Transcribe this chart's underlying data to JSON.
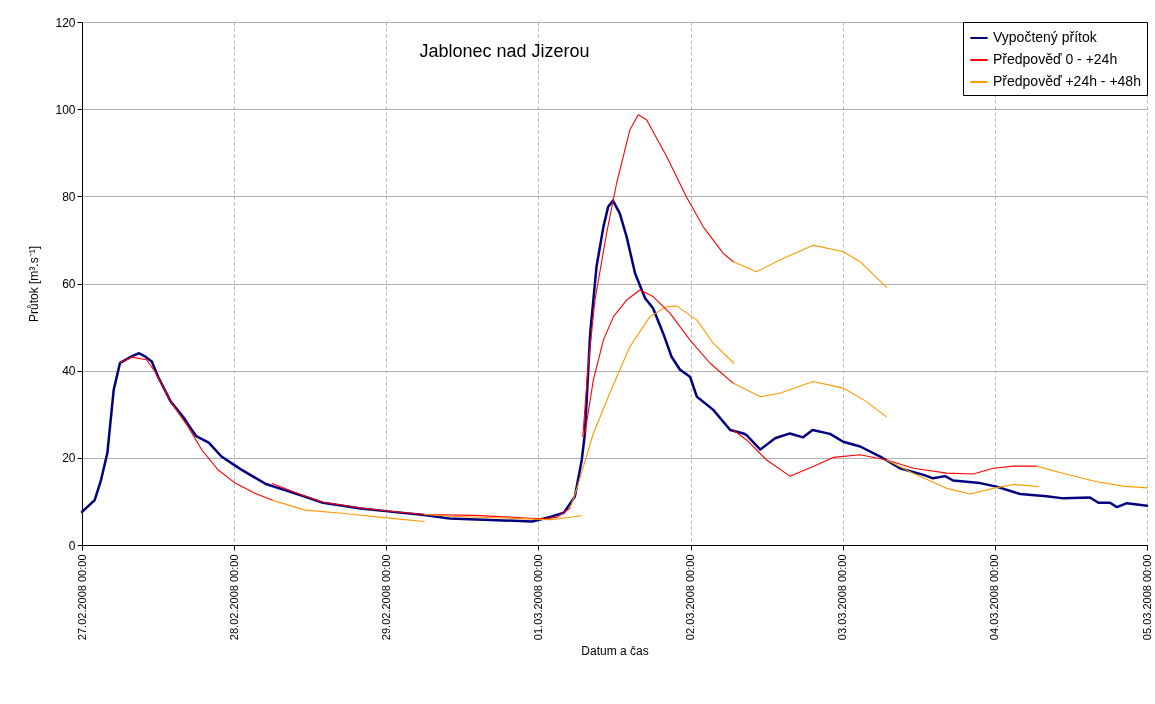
{
  "chart_data": {
    "type": "line",
    "title": "Jablonec nad Jizerou",
    "xlabel": "Datum a čas",
    "ylabel": "Průtok [m³.s⁻¹]",
    "xlim": [
      "2008-02-27T00:00",
      "2008-03-05T00:00"
    ],
    "xticks": [
      {
        "value": "2008-02-27T00:00",
        "label": "27.02.2008 00:00"
      },
      {
        "value": "2008-02-28T00:00",
        "label": "28.02.2008 00:00"
      },
      {
        "value": "2008-02-29T00:00",
        "label": "29.02.2008 00:00"
      },
      {
        "value": "2008-03-01T00:00",
        "label": "01.03.2008 00:00"
      },
      {
        "value": "2008-03-02T00:00",
        "label": "02.03.2008 00:00"
      },
      {
        "value": "2008-03-03T00:00",
        "label": "03.03.2008 00:00"
      },
      {
        "value": "2008-03-04T00:00",
        "label": "04.03.2008 00:00"
      },
      {
        "value": "2008-03-05T00:00",
        "label": "05.03.2008 00:00"
      }
    ],
    "ylim": [
      0,
      120
    ],
    "yticks": [
      0,
      20,
      40,
      60,
      80,
      100,
      120
    ],
    "grid": true,
    "legend": "top right",
    "marker": "none",
    "line_style": "solid",
    "series": [
      {
        "name": "Vypočtený přítok",
        "color": "#000080",
        "x": [
          "2008-02-27T00:00",
          "2008-02-27T02:00",
          "2008-02-27T03:00",
          "2008-02-27T04:00",
          "2008-02-27T05:00",
          "2008-02-27T06:00",
          "2008-02-27T08:00",
          "2008-02-27T09:00",
          "2008-02-27T10:00",
          "2008-02-27T11:00",
          "2008-02-27T12:00",
          "2008-02-27T14:00",
          "2008-02-27T16:00",
          "2008-02-27T17:00",
          "2008-02-27T18:00",
          "2008-02-27T20:00",
          "2008-02-27T22:00",
          "2008-02-28T01:00",
          "2008-02-28T03:00",
          "2008-02-28T05:00",
          "2008-02-28T08:00",
          "2008-02-28T11:00",
          "2008-02-28T14:00",
          "2008-02-28T20:00",
          "2008-02-29T01:00",
          "2008-02-29T06:00",
          "2008-02-29T10:00",
          "2008-02-29T23:00",
          "2008-03-01T02:00",
          "2008-03-01T04:00",
          "2008-03-01T05:45",
          "2008-03-01T06:50",
          "2008-03-01T07:20",
          "2008-03-01T08:10",
          "2008-03-01T09:10",
          "2008-03-01T10:15",
          "2008-03-01T11:00",
          "2008-03-01T11:45",
          "2008-03-01T12:50",
          "2008-03-01T13:55",
          "2008-03-01T15:15",
          "2008-03-01T16:50",
          "2008-03-01T18:05",
          "2008-03-01T19:40",
          "2008-03-01T21:00",
          "2008-03-01T22:20",
          "2008-03-01T23:55",
          "2008-03-02T01:00",
          "2008-03-02T03:35",
          "2008-03-02T06:15",
          "2008-03-02T08:20",
          "2008-03-02T08:50",
          "2008-03-02T11:00",
          "2008-03-02T13:20",
          "2008-03-02T15:40",
          "2008-03-02T17:45",
          "2008-03-02T19:15",
          "2008-03-02T22:00",
          "2008-03-03T00:05",
          "2008-03-03T02:45",
          "2008-03-03T05:55",
          "2008-03-03T09:00",
          "2008-03-03T12:45",
          "2008-03-03T14:15",
          "2008-03-03T16:10",
          "2008-03-03T17:25",
          "2008-03-03T21:40",
          "2008-03-04T00:15",
          "2008-03-04T04:00",
          "2008-03-04T08:10",
          "2008-03-04T10:50",
          "2008-03-04T15:00",
          "2008-03-04T16:20",
          "2008-03-04T18:10",
          "2008-03-04T19:15",
          "2008-03-04T20:50",
          "2008-03-05T00:00"
        ],
        "values": [
          7.6,
          10.3,
          14.9,
          21.1,
          35.6,
          41.8,
          43.4,
          44.0,
          43.2,
          42.1,
          38.6,
          32.9,
          29.3,
          27.1,
          25.0,
          23.5,
          20.3,
          17.4,
          15.7,
          14.0,
          12.6,
          11.2,
          9.7,
          8.4,
          7.6,
          6.9,
          6.1,
          5.4,
          6.5,
          7.4,
          11.1,
          19.5,
          25.6,
          48.6,
          63.9,
          73.0,
          77.6,
          79.0,
          76.1,
          70.7,
          62.3,
          56.6,
          54.3,
          48.6,
          43.2,
          40.2,
          38.6,
          34.0,
          31.0,
          26.4,
          25.6,
          25.2,
          21.9,
          24.5,
          25.6,
          24.7,
          26.4,
          25.5,
          23.7,
          22.6,
          20.3,
          17.6,
          16.1,
          15.3,
          15.8,
          14.8,
          14.2,
          13.4,
          11.7,
          11.2,
          10.7,
          10.9,
          9.7,
          9.7,
          8.7,
          9.6,
          9.0
        ]
      },
      {
        "name": "Předpověď 0 - +24h",
        "color": "#ff0000",
        "x": [
          "2008-02-27T06:00",
          "2008-02-27T07:50",
          "2008-02-27T10:10",
          "2008-02-27T11:30",
          "2008-02-27T14:10",
          "2008-02-27T16:45",
          "2008-02-27T18:55",
          "2008-02-27T21:30",
          "2008-02-28T00:10",
          "2008-02-28T03:15",
          "2008-02-28T06:00"
        ],
        "values": [
          41.8,
          43.1,
          42.5,
          39.8,
          32.5,
          27.1,
          21.8,
          17.2,
          14.2,
          11.9,
          10.3
        ]
      },
      {
        "name": "Předpověď +24h - +48h",
        "color": "#ff9900",
        "x": [
          "2008-02-28T06:00",
          "2008-02-28T11:10",
          "2008-02-28T17:00",
          "2008-02-29T00:50",
          "2008-02-29T06:00"
        ],
        "values": [
          10.3,
          8.0,
          7.3,
          6.1,
          5.4
        ]
      },
      {
        "color": "#ff0000",
        "x": [
          "2008-02-28T06:00",
          "2008-02-28T11:00",
          "2008-02-28T14:00",
          "2008-02-28T20:00",
          "2008-02-29T01:00",
          "2008-02-29T06:00",
          "2008-02-29T14:00",
          "2008-02-29T22:00",
          "2008-03-01T01:00",
          "2008-03-01T03:00",
          "2008-03-01T05:00"
        ],
        "values": [
          14.1,
          11.3,
          9.8,
          8.5,
          7.7,
          7.0,
          6.8,
          6.2,
          6.0,
          6.4,
          8.5
        ]
      },
      {
        "color": "#ff9900",
        "x": [
          "2008-02-29T06:00",
          "2008-02-29T10:00",
          "2008-02-29T22:00",
          "2008-03-01T02:00",
          "2008-03-01T06:50"
        ],
        "values": [
          7.0,
          6.6,
          6.0,
          5.8,
          6.7
        ]
      },
      {
        "color": "#ff9900",
        "x": [
          "2008-03-01T05:00",
          "2008-03-01T05:45",
          "2008-03-01T08:40",
          "2008-03-01T11:15",
          "2008-03-01T14:25",
          "2008-03-01T17:35",
          "2008-03-01T20:15",
          "2008-03-01T21:50",
          "2008-03-02T01:00",
          "2008-03-02T03:35",
          "2008-03-02T06:50"
        ],
        "values": [
          8.5,
          11.5,
          25.6,
          34.8,
          45.5,
          52.4,
          54.7,
          54.8,
          51.6,
          46.3,
          41.7
        ]
      },
      {
        "color": "#ff0000",
        "x": [
          "2008-03-01T07:00",
          "2008-03-01T07:50",
          "2008-03-01T08:55",
          "2008-03-01T10:45",
          "2008-03-01T12:20",
          "2008-03-01T14:25",
          "2008-03-01T15:45",
          "2008-03-01T17:05",
          "2008-03-01T20:15",
          "2008-03-01T23:20",
          "2008-03-02T02:00",
          "2008-03-02T05:10",
          "2008-03-02T06:45"
        ],
        "values": [
          24.9,
          40.9,
          56.2,
          71.5,
          83.0,
          95.2,
          98.7,
          97.5,
          89.1,
          79.9,
          73.0,
          66.9,
          65.0
        ]
      },
      {
        "color": "#ff9900",
        "x": [
          "2008-03-02T06:45",
          "2008-03-02T10:25",
          "2008-03-02T14:05",
          "2008-03-02T19:20",
          "2008-03-03T00:05",
          "2008-03-03T02:45",
          "2008-03-03T06:55"
        ],
        "values": [
          65.0,
          62.7,
          65.4,
          68.8,
          67.3,
          65.0,
          59.1
        ]
      },
      {
        "color": "#ff0000",
        "x": [
          "2008-03-01T07:20",
          "2008-03-01T08:40",
          "2008-03-01T10:15",
          "2008-03-01T11:50",
          "2008-03-01T13:55",
          "2008-03-01T16:00",
          "2008-03-01T18:05",
          "2008-03-01T20:45",
          "2008-03-01T23:55",
          "2008-03-02T03:05",
          "2008-03-02T06:45"
        ],
        "values": [
          25.6,
          37.9,
          47.0,
          52.4,
          56.2,
          58.5,
          57.0,
          53.2,
          47.0,
          41.7,
          37.1
        ]
      },
      {
        "color": "#ff9900",
        "x": [
          "2008-03-02T06:45",
          "2008-03-02T11:00",
          "2008-03-02T14:05",
          "2008-03-02T19:20",
          "2008-03-03T00:05",
          "2008-03-03T03:45",
          "2008-03-03T06:55"
        ],
        "values": [
          37.1,
          34.0,
          34.8,
          37.5,
          36.0,
          32.9,
          29.4
        ]
      },
      {
        "color": "#ff0000",
        "x": [
          "2008-03-02T06:45",
          "2008-03-02T08:50",
          "2008-03-02T12:00",
          "2008-03-02T15:40",
          "2008-03-02T19:20",
          "2008-03-02T22:30",
          "2008-03-03T02:45",
          "2008-03-03T06:55",
          "2008-03-03T11:10",
          "2008-03-03T16:25",
          "2008-03-03T20:35",
          "2008-03-03T23:45",
          "2008-03-04T02:55",
          "2008-03-04T06:35"
        ],
        "values": [
          26.4,
          24.1,
          19.5,
          15.8,
          18.0,
          20.1,
          20.7,
          19.5,
          17.6,
          16.5,
          16.3,
          17.6,
          18.1,
          18.1
        ]
      },
      {
        "color": "#ff9900",
        "x": [
          "2008-03-03T06:55",
          "2008-03-03T11:10",
          "2008-03-03T16:25",
          "2008-03-03T20:05",
          "2008-03-03T23:45",
          "2008-03-04T02:55",
          "2008-03-04T06:50"
        ],
        "values": [
          19.5,
          16.4,
          13.0,
          11.7,
          13.0,
          13.9,
          13.4
        ]
      },
      {
        "color": "#ff9900",
        "x": [
          "2008-03-04T06:35",
          "2008-03-04T10:50",
          "2008-03-04T16:05",
          "2008-03-04T20:15",
          "2008-03-05T00:00"
        ],
        "values": [
          18.1,
          16.4,
          14.5,
          13.5,
          13.1
        ]
      }
    ]
  }
}
